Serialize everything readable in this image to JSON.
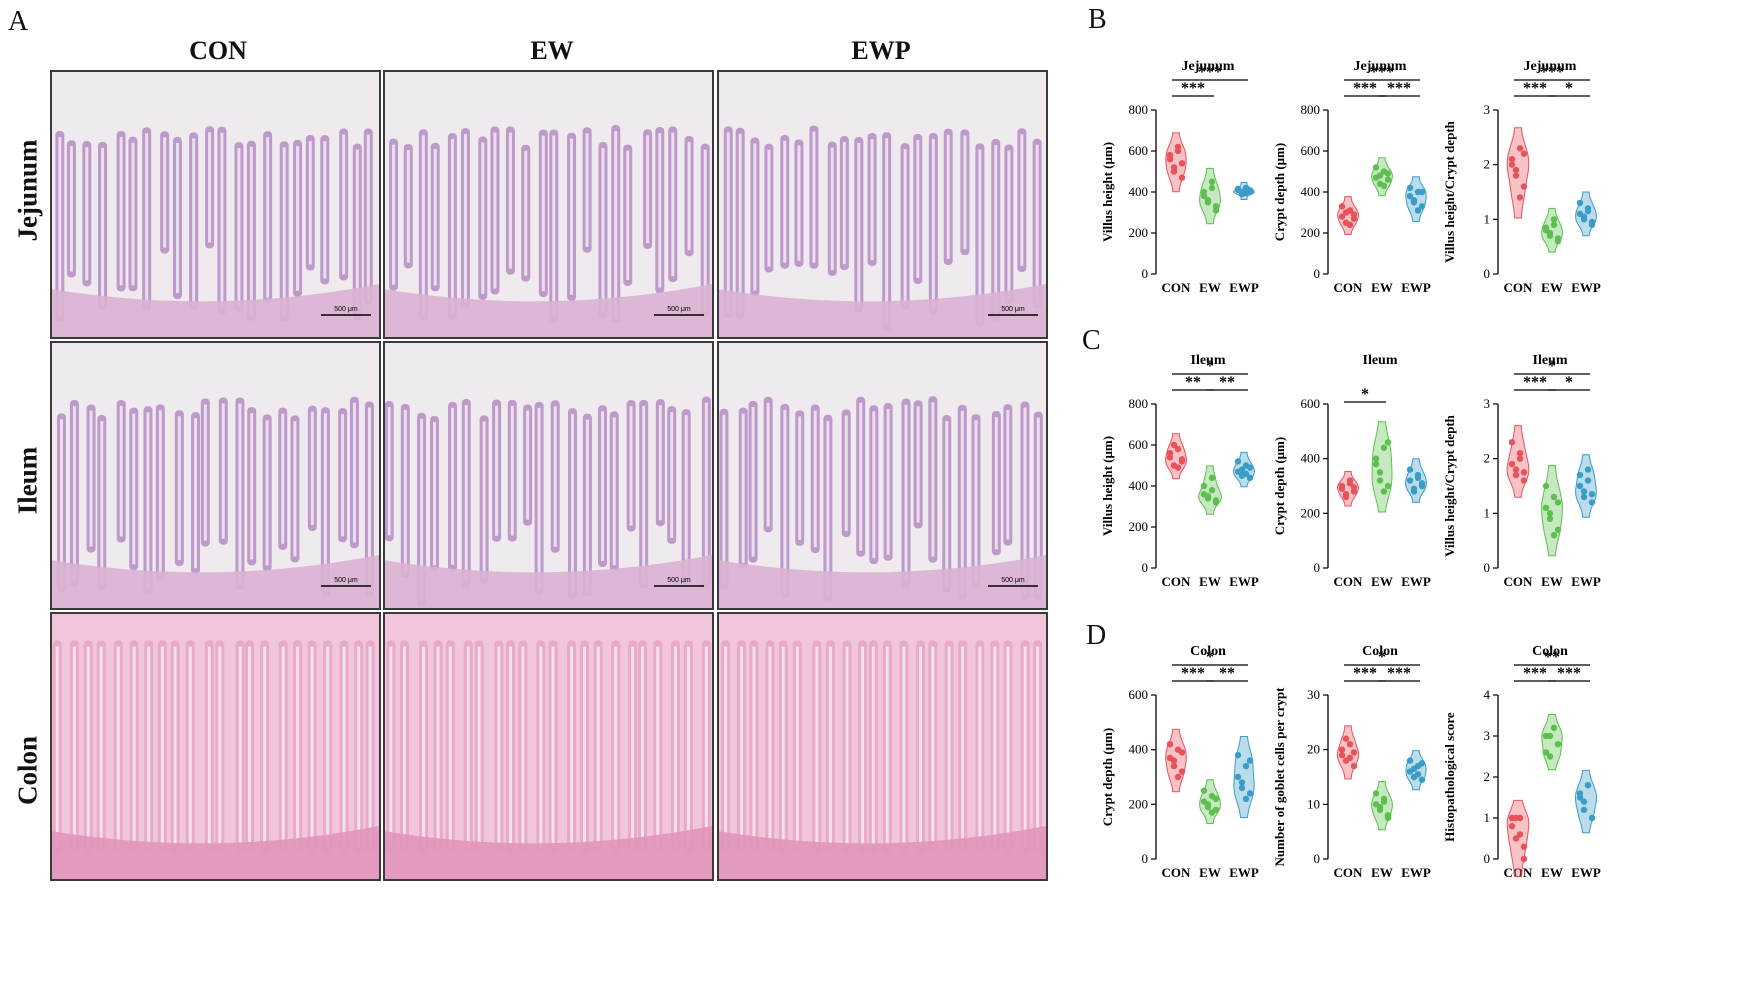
{
  "panels": {
    "A": "A",
    "B": "B",
    "C": "C",
    "D": "D"
  },
  "columns": [
    "CON",
    "EW",
    "EWP"
  ],
  "rows": [
    "Jejunum",
    "Ileum",
    "Colon"
  ],
  "scale_bar_label": "500 μm",
  "colors": {
    "CON": "#e8525b",
    "EW": "#5cbf4e",
    "EWP": "#3b9dc7",
    "he_purple": "#b58cc4",
    "he_pink": "#e8a5c6"
  },
  "chart_data": [
    {
      "panel": "B",
      "type": "violin",
      "title": "Jejunum",
      "ylabel": "Villus height (μm)",
      "categories": [
        "CON",
        "EW",
        "EWP"
      ],
      "ylim": [
        0,
        800
      ],
      "yticks": [
        0,
        200,
        400,
        600,
        800
      ],
      "points": [
        [
          560,
          520,
          600,
          540,
          580,
          500,
          620,
          470
        ],
        [
          380,
          350,
          420,
          330,
          400,
          360,
          450,
          310
        ],
        [
          410,
          400,
          395,
          405,
          415,
          390,
          420,
          400
        ]
      ],
      "significance": [
        {
          "from": 0,
          "to": 1,
          "label": "***"
        },
        {
          "from": 0,
          "to": 2,
          "label": "***"
        }
      ]
    },
    {
      "panel": "B",
      "type": "violin",
      "title": "Jejunum",
      "ylabel": "Crypt depth (μm)",
      "categories": [
        "CON",
        "EW",
        "EWP"
      ],
      "ylim": [
        0,
        800
      ],
      "yticks": [
        0,
        200,
        400,
        600,
        800
      ],
      "points": [
        [
          280,
          250,
          310,
          270,
          330,
          300,
          240,
          290
        ],
        [
          470,
          440,
          500,
          460,
          520,
          480,
          430,
          490
        ],
        [
          380,
          350,
          400,
          330,
          420,
          360,
          310,
          400
        ]
      ],
      "significance": [
        {
          "from": 0,
          "to": 1,
          "label": "***"
        },
        {
          "from": 1,
          "to": 2,
          "label": "***"
        },
        {
          "from": 0,
          "to": 2,
          "label": "***"
        }
      ]
    },
    {
      "panel": "B",
      "type": "violin",
      "title": "Jejunum",
      "ylabel": "Villus height/Crypt depth",
      "categories": [
        "CON",
        "EW",
        "EWP"
      ],
      "ylim": [
        0,
        3
      ],
      "yticks": [
        0,
        1,
        2,
        3
      ],
      "points": [
        [
          2.0,
          1.8,
          2.3,
          1.6,
          2.1,
          1.9,
          1.4,
          2.2
        ],
        [
          0.8,
          0.7,
          0.9,
          0.6,
          0.85,
          0.75,
          1.0,
          0.65
        ],
        [
          1.1,
          1.0,
          1.2,
          0.95,
          1.3,
          1.05,
          1.15,
          0.9
        ]
      ],
      "significance": [
        {
          "from": 0,
          "to": 1,
          "label": "***"
        },
        {
          "from": 1,
          "to": 2,
          "label": "*"
        },
        {
          "from": 0,
          "to": 2,
          "label": "***"
        }
      ]
    },
    {
      "panel": "C",
      "type": "violin",
      "title": "Ileum",
      "ylabel": "Villus height (μm)",
      "categories": [
        "CON",
        "EW",
        "EWP"
      ],
      "ylim": [
        0,
        800
      ],
      "yticks": [
        0,
        200,
        400,
        600,
        800
      ],
      "points": [
        [
          540,
          500,
          580,
          520,
          560,
          600,
          490,
          530
        ],
        [
          360,
          340,
          380,
          320,
          400,
          350,
          440,
          330
        ],
        [
          470,
          450,
          500,
          440,
          520,
          480,
          460,
          490
        ]
      ],
      "significance": [
        {
          "from": 0,
          "to": 1,
          "label": "**"
        },
        {
          "from": 1,
          "to": 2,
          "label": "**"
        },
        {
          "from": 0,
          "to": 2,
          "label": "*"
        }
      ]
    },
    {
      "panel": "C",
      "type": "violin",
      "title": "Ileum",
      "ylabel": "Crypt depth (μm)",
      "categories": [
        "CON",
        "EW",
        "EWP"
      ],
      "ylim": [
        0,
        600
      ],
      "yticks": [
        0,
        200,
        400,
        600
      ],
      "points": [
        [
          290,
          270,
          310,
          280,
          300,
          260,
          320,
          295
        ],
        [
          380,
          320,
          440,
          300,
          400,
          350,
          280,
          460
        ],
        [
          320,
          290,
          340,
          300,
          360,
          280,
          330,
          310
        ]
      ],
      "significance": [
        {
          "from": 0,
          "to": 1,
          "label": "*"
        }
      ]
    },
    {
      "panel": "C",
      "type": "violin",
      "title": "Ileum",
      "ylabel": "Villus height/Crypt depth",
      "categories": [
        "CON",
        "EW",
        "EWP"
      ],
      "ylim": [
        0,
        3
      ],
      "yticks": [
        0,
        1,
        2,
        3
      ],
      "points": [
        [
          1.9,
          1.7,
          2.1,
          1.6,
          2.3,
          1.8,
          2.0,
          1.75
        ],
        [
          1.1,
          0.9,
          1.3,
          0.7,
          1.5,
          1.0,
          0.6,
          1.2
        ],
        [
          1.5,
          1.3,
          1.6,
          1.2,
          1.7,
          1.4,
          1.8,
          1.35
        ]
      ],
      "significance": [
        {
          "from": 0,
          "to": 1,
          "label": "***"
        },
        {
          "from": 1,
          "to": 2,
          "label": "*"
        },
        {
          "from": 0,
          "to": 2,
          "label": "*"
        }
      ]
    },
    {
      "panel": "D",
      "type": "violin",
      "title": "Colon",
      "ylabel": "Crypt depth (μm)",
      "categories": [
        "CON",
        "EW",
        "EWP"
      ],
      "ylim": [
        0,
        600
      ],
      "yticks": [
        0,
        200,
        400,
        600
      ],
      "points": [
        [
          370,
          340,
          400,
          320,
          420,
          360,
          300,
          390
        ],
        [
          210,
          190,
          230,
          180,
          250,
          200,
          170,
          220
        ],
        [
          300,
          260,
          340,
          240,
          380,
          280,
          220,
          360
        ]
      ],
      "significance": [
        {
          "from": 0,
          "to": 1,
          "label": "***"
        },
        {
          "from": 1,
          "to": 2,
          "label": "**"
        },
        {
          "from": 0,
          "to": 2,
          "label": "*"
        }
      ]
    },
    {
      "panel": "D",
      "type": "violin",
      "title": "Colon",
      "ylabel": "Number of goblet cells per crypt",
      "categories": [
        "CON",
        "EW",
        "EWP"
      ],
      "ylim": [
        0,
        30
      ],
      "yticks": [
        0,
        10,
        20,
        30
      ],
      "points": [
        [
          19,
          18,
          21,
          17,
          20,
          22,
          18.5,
          19.5
        ],
        [
          10,
          9,
          11,
          8,
          12,
          9.5,
          10.5,
          7.5
        ],
        [
          16,
          15,
          17,
          14.5,
          18,
          16.5,
          15.5,
          17.5
        ]
      ],
      "significance": [
        {
          "from": 0,
          "to": 1,
          "label": "***"
        },
        {
          "from": 1,
          "to": 2,
          "label": "***"
        },
        {
          "from": 0,
          "to": 2,
          "label": "*"
        }
      ]
    },
    {
      "panel": "D",
      "type": "violin",
      "title": "Colon",
      "ylabel": "Histopathological score",
      "categories": [
        "CON",
        "EW",
        "EWP"
      ],
      "ylim": [
        0,
        4
      ],
      "yticks": [
        0,
        1,
        2,
        3,
        4
      ],
      "points": [
        [
          1,
          0.5,
          1,
          0,
          0.8,
          1,
          0.6,
          0.3
        ],
        [
          3,
          2.5,
          3.2,
          2.8,
          2.6,
          3
        ],
        [
          1.5,
          1.2,
          1.8,
          1,
          1.6,
          1.4
        ]
      ],
      "significance": [
        {
          "from": 0,
          "to": 1,
          "label": "***"
        },
        {
          "from": 1,
          "to": 2,
          "label": "***"
        },
        {
          "from": 0,
          "to": 2,
          "label": "**"
        }
      ]
    }
  ]
}
